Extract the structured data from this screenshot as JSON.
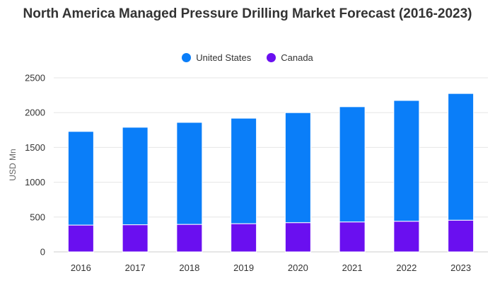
{
  "chart_data": {
    "type": "bar",
    "stacked": true,
    "title": "North America Managed Pressure Drilling Market Forecast (2016-2023)",
    "ylabel": "USD Mn",
    "xlabel": "",
    "categories": [
      "2016",
      "2017",
      "2018",
      "2019",
      "2020",
      "2021",
      "2022",
      "2023"
    ],
    "series": [
      {
        "name": "Canada",
        "color": "#6a0ff0",
        "values": [
          385,
          390,
          395,
          405,
          420,
          430,
          440,
          455
        ]
      },
      {
        "name": "United States",
        "color": "#0a7ef9",
        "values": [
          1345,
          1400,
          1465,
          1515,
          1580,
          1655,
          1735,
          1820
        ]
      }
    ],
    "ylim": [
      0,
      2500
    ],
    "yticks": [
      "0",
      "500",
      "1000",
      "1500",
      "2000",
      "2500"
    ],
    "legend_position": "top",
    "grid": true
  }
}
